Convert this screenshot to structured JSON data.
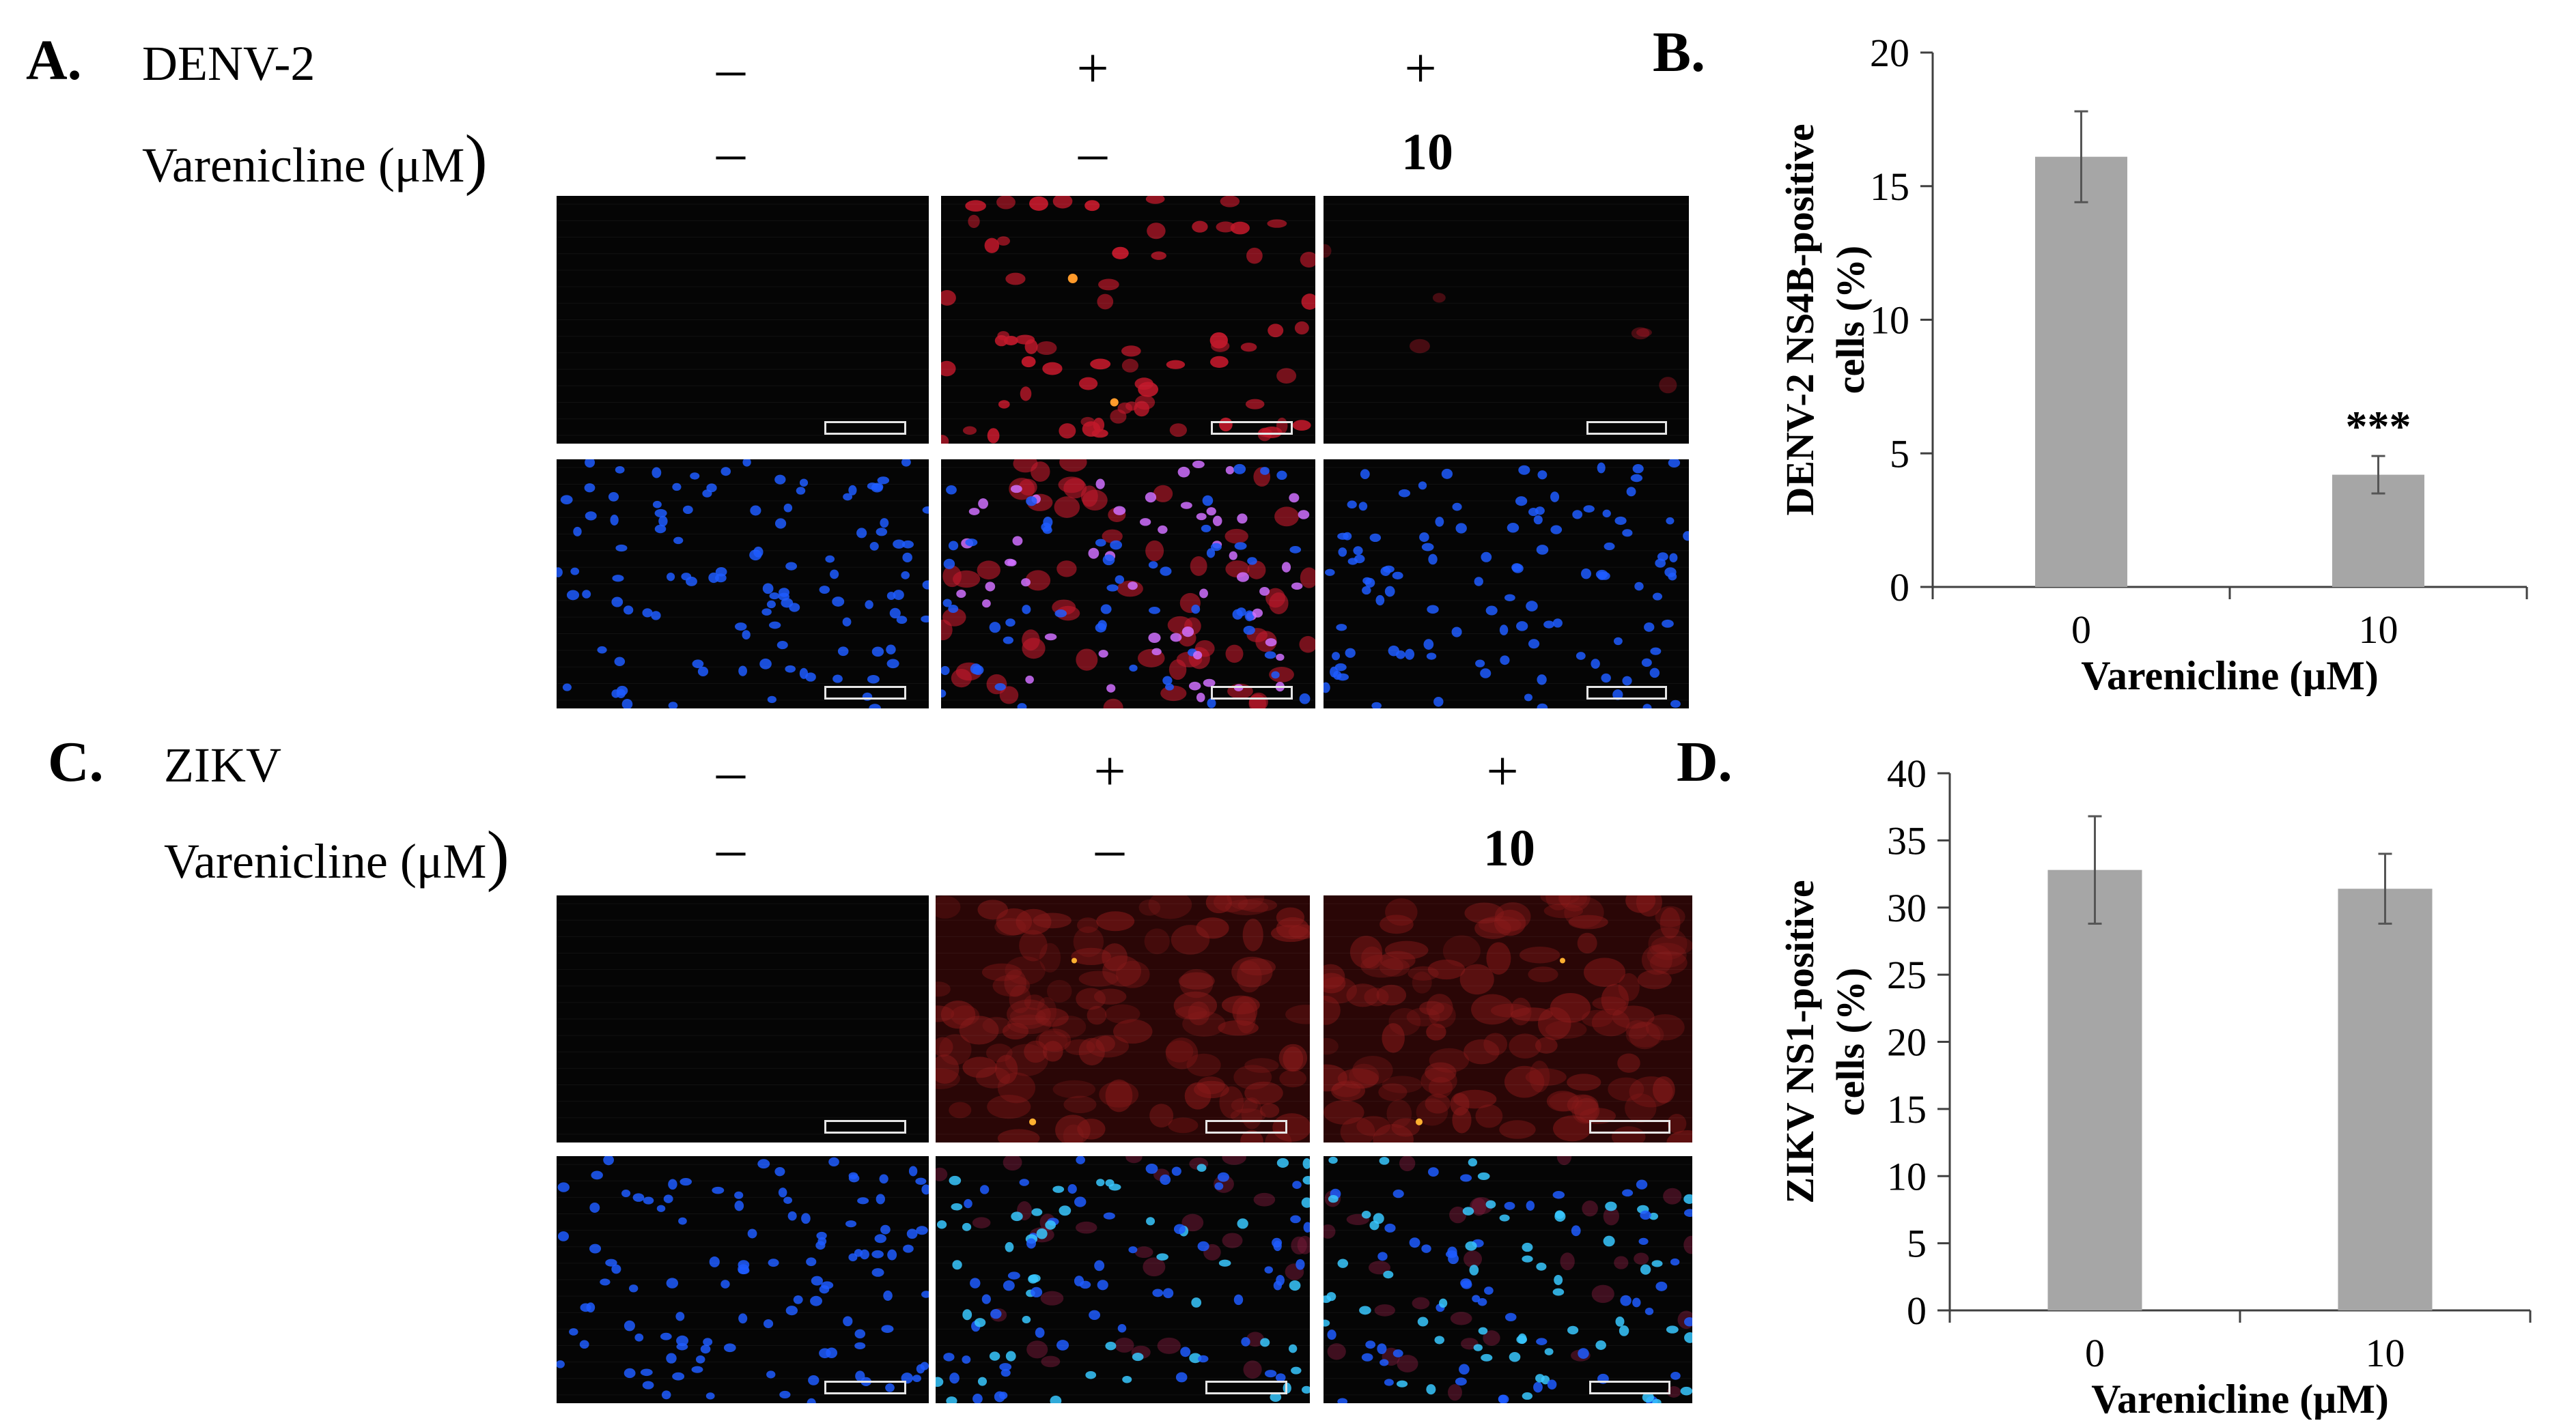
{
  "panels": {
    "A": {
      "letter": "A.",
      "virus_label": "DENV-2",
      "drug_label": "Varenicline (μM",
      "paren": ")",
      "virus_signs": [
        "–",
        "+",
        "+"
      ],
      "drug_values": [
        "–",
        "–",
        "10"
      ]
    },
    "C": {
      "letter": "C.",
      "virus_label": "ZIKV",
      "drug_label": "Varenicline (μM",
      "paren": ")",
      "virus_signs": [
        "–",
        "+",
        "+"
      ],
      "drug_values": [
        "–",
        "–",
        "10"
      ]
    },
    "B": {
      "letter": "B."
    },
    "D": {
      "letter": "D."
    }
  },
  "micrographs": [
    {
      "panel": "A",
      "row": "red-channel",
      "column": 1,
      "content": "empty"
    },
    {
      "panel": "A",
      "row": "red-channel",
      "column": 2,
      "content": "many-red-cells"
    },
    {
      "panel": "A",
      "row": "red-channel",
      "column": 3,
      "content": "few-red-cells"
    },
    {
      "panel": "A",
      "row": "merged",
      "column": 1,
      "content": "blue-nuclei"
    },
    {
      "panel": "A",
      "row": "merged",
      "column": 2,
      "content": "blue-and-magenta"
    },
    {
      "panel": "A",
      "row": "merged",
      "column": 3,
      "content": "blue-nuclei"
    },
    {
      "panel": "C",
      "row": "red-channel",
      "column": 1,
      "content": "empty"
    },
    {
      "panel": "C",
      "row": "red-channel",
      "column": 2,
      "content": "diffuse-red"
    },
    {
      "panel": "C",
      "row": "red-channel",
      "column": 3,
      "content": "diffuse-red"
    },
    {
      "panel": "C",
      "row": "merged",
      "column": 1,
      "content": "blue-nuclei"
    },
    {
      "panel": "C",
      "row": "merged",
      "column": 2,
      "content": "cyan-nuclei"
    },
    {
      "panel": "C",
      "row": "merged",
      "column": 3,
      "content": "cyan-nuclei"
    }
  ],
  "colors": {
    "bar": "#a6a6a6",
    "axis": "#404040",
    "nuclei_blue": "#1f5cff",
    "infected_red": "#c2192b",
    "cyan_nuclei": "#38c8ff",
    "magenta_cells": "#d070ff"
  },
  "chart_data": [
    {
      "panel": "B",
      "type": "bar",
      "categories": [
        "0",
        "10"
      ],
      "values": [
        16.1,
        4.2
      ],
      "error": [
        1.7,
        0.7
      ],
      "annotations": [
        {
          "category": "10",
          "text": "***"
        }
      ],
      "xlabel": "Varenicline (μM)",
      "ylabel_line1": "DENV-2 NS4B-positive",
      "ylabel_line2": "cells (%)",
      "ylim": [
        0,
        20
      ],
      "yticks": [
        0,
        5,
        10,
        15,
        20
      ],
      "grid": false
    },
    {
      "panel": "D",
      "type": "bar",
      "categories": [
        "0",
        "10"
      ],
      "values": [
        32.8,
        31.4
      ],
      "error": [
        4.0,
        2.6
      ],
      "annotations": [],
      "xlabel": "Varenicline (μM)",
      "ylabel_line1": "ZIKV NS1-positive",
      "ylabel_line2": "cells (%)",
      "ylim": [
        0,
        40
      ],
      "yticks": [
        0,
        5,
        10,
        15,
        20,
        25,
        30,
        35,
        40
      ],
      "grid": false
    }
  ]
}
